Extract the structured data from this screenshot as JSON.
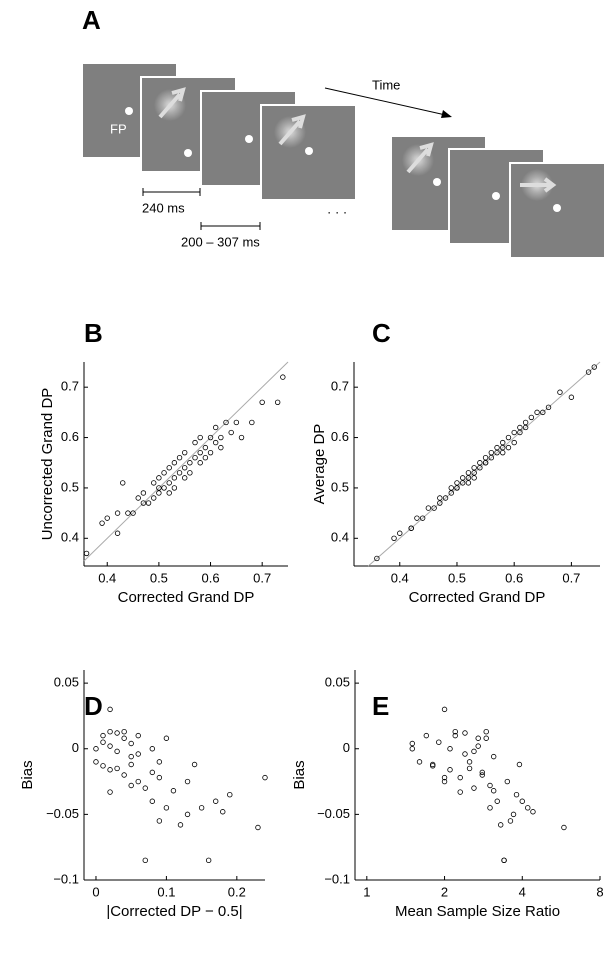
{
  "panel_a": {
    "panel": "A",
    "fixation_label": "FP",
    "duration_label": "240 ms",
    "interval_label": "200 – 307 ms",
    "time_label": "Time",
    "ellipsis": "· · ·"
  },
  "chart_data": [
    {
      "type": "scatter",
      "panel": "B",
      "xlabel": "Corrected Grand DP",
      "ylabel": "Uncorrected Grand DP",
      "identity_line": true,
      "xlim": [
        0.355,
        0.75
      ],
      "ylim": [
        0.345,
        0.75
      ],
      "xticks": [
        0.4,
        0.5,
        0.6,
        0.7
      ],
      "yticks": [
        0.4,
        0.5,
        0.6,
        0.7
      ],
      "x": [
        0.36,
        0.39,
        0.4,
        0.42,
        0.42,
        0.43,
        0.44,
        0.45,
        0.46,
        0.47,
        0.47,
        0.48,
        0.49,
        0.49,
        0.5,
        0.5,
        0.5,
        0.51,
        0.51,
        0.52,
        0.52,
        0.52,
        0.53,
        0.53,
        0.53,
        0.54,
        0.54,
        0.55,
        0.55,
        0.55,
        0.56,
        0.56,
        0.57,
        0.57,
        0.58,
        0.58,
        0.58,
        0.59,
        0.59,
        0.6,
        0.6,
        0.61,
        0.61,
        0.62,
        0.62,
        0.63,
        0.64,
        0.65,
        0.66,
        0.68,
        0.7,
        0.73,
        0.74
      ],
      "values": [
        0.37,
        0.43,
        0.44,
        0.41,
        0.45,
        0.51,
        0.45,
        0.45,
        0.48,
        0.47,
        0.49,
        0.47,
        0.51,
        0.48,
        0.5,
        0.52,
        0.49,
        0.5,
        0.53,
        0.51,
        0.54,
        0.49,
        0.52,
        0.55,
        0.5,
        0.53,
        0.56,
        0.54,
        0.52,
        0.57,
        0.55,
        0.53,
        0.56,
        0.59,
        0.57,
        0.55,
        0.6,
        0.58,
        0.56,
        0.6,
        0.57,
        0.59,
        0.62,
        0.6,
        0.58,
        0.63,
        0.61,
        0.63,
        0.6,
        0.63,
        0.67,
        0.67,
        0.72
      ]
    },
    {
      "type": "scatter",
      "panel": "C",
      "xlabel": "Corrected Grand DP",
      "ylabel": "Average DP",
      "identity_line": true,
      "xlim": [
        0.32,
        0.75
      ],
      "ylim": [
        0.345,
        0.75
      ],
      "xticks": [
        0.4,
        0.5,
        0.6,
        0.7
      ],
      "yticks": [
        0.4,
        0.5,
        0.6,
        0.7
      ],
      "x": [
        0.36,
        0.39,
        0.4,
        0.42,
        0.42,
        0.43,
        0.44,
        0.45,
        0.46,
        0.47,
        0.47,
        0.48,
        0.49,
        0.49,
        0.5,
        0.5,
        0.5,
        0.51,
        0.51,
        0.52,
        0.52,
        0.52,
        0.53,
        0.53,
        0.53,
        0.54,
        0.54,
        0.55,
        0.55,
        0.55,
        0.56,
        0.56,
        0.57,
        0.57,
        0.58,
        0.58,
        0.58,
        0.59,
        0.59,
        0.6,
        0.6,
        0.61,
        0.61,
        0.62,
        0.62,
        0.63,
        0.64,
        0.65,
        0.66,
        0.68,
        0.7,
        0.73,
        0.74
      ],
      "values": [
        0.36,
        0.4,
        0.41,
        0.42,
        0.42,
        0.44,
        0.44,
        0.46,
        0.46,
        0.47,
        0.48,
        0.48,
        0.49,
        0.5,
        0.5,
        0.51,
        0.5,
        0.52,
        0.51,
        0.52,
        0.53,
        0.51,
        0.53,
        0.54,
        0.52,
        0.55,
        0.54,
        0.55,
        0.56,
        0.55,
        0.57,
        0.56,
        0.57,
        0.58,
        0.58,
        0.57,
        0.59,
        0.6,
        0.58,
        0.61,
        0.59,
        0.62,
        0.61,
        0.63,
        0.62,
        0.64,
        0.65,
        0.65,
        0.66,
        0.69,
        0.68,
        0.73,
        0.74
      ]
    },
    {
      "type": "scatter",
      "panel": "D",
      "xlabel": "|Corrected DP − 0.5|",
      "ylabel": "Bias",
      "xlim": [
        -0.017,
        0.24
      ],
      "ylim": [
        -0.1,
        0.06
      ],
      "xticks": [
        0,
        0.1,
        0.2
      ],
      "yticks": [
        {
          "value": -0.1,
          "label": "−0.1"
        },
        {
          "value": -0.05,
          "label": "−0.05"
        },
        0,
        0.05
      ],
      "x": [
        0,
        0,
        0.01,
        0.01,
        0.01,
        0.02,
        0.02,
        0.02,
        0.02,
        0.03,
        0.03,
        0.03,
        0.04,
        0.04,
        0.04,
        0.05,
        0.05,
        0.05,
        0.06,
        0.06,
        0.06,
        0.07,
        0.07,
        0.08,
        0.08,
        0.08,
        0.09,
        0.09,
        0.1,
        0.1,
        0.11,
        0.12,
        0.13,
        0.13,
        0.14,
        0.15,
        0.16,
        0.17,
        0.18,
        0.19,
        0.23,
        0.24,
        0.02,
        0.05,
        0.09
      ],
      "values": [
        0,
        -0.01,
        0.01,
        -0.013,
        0.005,
        0.03,
        -0.016,
        0.013,
        -0.033,
        0.012,
        -0.015,
        -0.002,
        0.008,
        -0.02,
        0.013,
        -0.028,
        0.004,
        -0.012,
        -0.025,
        0.01,
        -0.004,
        -0.03,
        -0.085,
        -0.04,
        0,
        -0.018,
        -0.055,
        -0.01,
        -0.045,
        0.008,
        -0.032,
        -0.058,
        -0.025,
        -0.05,
        -0.012,
        -0.045,
        -0.085,
        -0.04,
        -0.048,
        -0.035,
        -0.06,
        -0.022,
        0.002,
        -0.006,
        -0.022
      ]
    },
    {
      "type": "scatter",
      "panel": "E",
      "xlabel": "Mean Sample Size Ratio",
      "ylabel": "Bias",
      "xscale": "log",
      "xlim": [
        0.9,
        8
      ],
      "ylim": [
        -0.1,
        0.06
      ],
      "xticks": [
        1,
        2,
        4,
        8
      ],
      "yticks": [
        {
          "value": -0.1,
          "label": "−0.1"
        },
        {
          "value": -0.05,
          "label": "−0.05"
        },
        0,
        0.05
      ],
      "x": [
        1.5,
        1.6,
        1.7,
        1.8,
        1.9,
        2.0,
        2.1,
        2.2,
        2.3,
        2.4,
        2.5,
        2.6,
        2.7,
        2.8,
        2.9,
        3.0,
        1.5,
        1.8,
        2.0,
        2.2,
        2.4,
        2.6,
        3.4,
        3.2,
        2.1,
        2.8,
        3.6,
        2.5,
        3.0,
        2.9,
        3.1,
        3.3,
        3.5,
        3.7,
        3.9,
        4.2,
        3.4,
        4.0,
        4.4,
        3.8,
        5.8,
        2.0,
        2.7,
        3.1,
        2.3
      ],
      "values": [
        0,
        -0.01,
        0.01,
        -0.013,
        0.005,
        0.03,
        -0.016,
        0.013,
        -0.033,
        0.012,
        -0.015,
        -0.002,
        0.008,
        -0.02,
        0.013,
        -0.028,
        0.004,
        -0.012,
        -0.025,
        0.01,
        -0.004,
        -0.03,
        -0.085,
        -0.04,
        0,
        -0.018,
        -0.055,
        -0.01,
        -0.045,
        0.008,
        -0.032,
        -0.058,
        -0.025,
        -0.05,
        -0.012,
        -0.045,
        -0.085,
        -0.04,
        -0.048,
        -0.035,
        -0.06,
        -0.022,
        0.002,
        -0.006,
        -0.022
      ]
    }
  ]
}
